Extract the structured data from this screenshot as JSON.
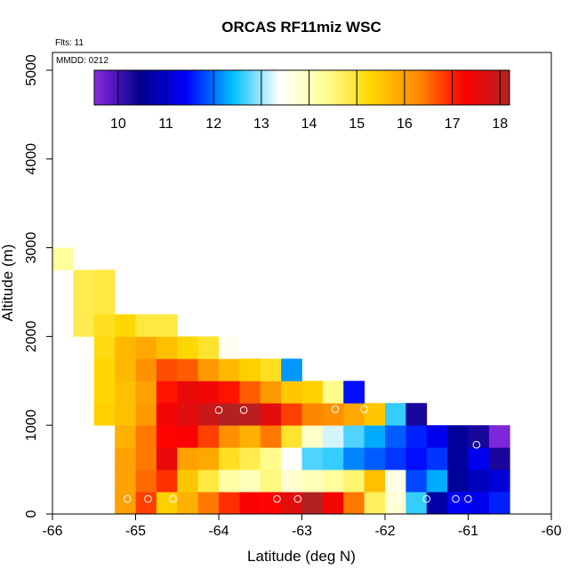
{
  "chart_data": {
    "type": "heatmap",
    "title": "ORCAS RF11miz WSC",
    "flights_label": "Flts: 11",
    "date_label": "MMDD: 0212",
    "xlabel": "Latitude (deg N)",
    "ylabel": "Altitude (m)",
    "xlim": [
      -66,
      -60
    ],
    "ylim": [
      0,
      5200
    ],
    "x_ticks": [
      -66,
      -65,
      -64,
      -63,
      -62,
      -61,
      -60
    ],
    "x_tick_labels": [
      "-66",
      "-65",
      "-64",
      "-63",
      "-62",
      "-61",
      "-60"
    ],
    "y_ticks": [
      0,
      1000,
      2000,
      3000,
      4000,
      5000
    ],
    "y_tick_labels": [
      "0",
      "1000",
      "2000",
      "3000",
      "4000",
      "5000"
    ],
    "cell_width_deg": 0.25,
    "cell_height_m": 250,
    "colorbar": {
      "range": [
        9.5,
        18.2
      ],
      "ticks": [
        10,
        11,
        12,
        13,
        14,
        15,
        16,
        17,
        18
      ],
      "tick_labels": [
        "10",
        "11",
        "12",
        "13",
        "14",
        "15",
        "16",
        "17",
        "18"
      ],
      "stops": [
        "#8a2be2",
        "#00008b",
        "#0000ff",
        "#00bfff",
        "#ffffff",
        "#ffff99",
        "#ffd700",
        "#ff8c00",
        "#ff0000",
        "#b22222"
      ]
    },
    "rows": [
      {
        "alt": 0,
        "lat_start": -65.25,
        "values": [
          16.0,
          16.8,
          15.4,
          15.8,
          16.4,
          16.9,
          17.3,
          17.2,
          17.6,
          18.2,
          17.4,
          16.4,
          14.7,
          13.8,
          12.6,
          10.7,
          11.4,
          11.3,
          11.6
        ]
      },
      {
        "alt": 250,
        "lat_start": -65.25,
        "values": [
          16.0,
          16.5,
          16.9,
          15.5,
          14.9,
          14.2,
          14.0,
          14.5,
          13.8,
          14.0,
          14.3,
          14.6,
          15.6,
          13.6,
          11.8,
          12.3,
          10.6,
          10.9,
          11.1
        ]
      },
      {
        "alt": 500,
        "lat_start": -65.25,
        "values": [
          16.0,
          16.4,
          17.5,
          16.0,
          15.9,
          15.1,
          14.8,
          14.4,
          13.4,
          12.7,
          12.6,
          12.1,
          11.9,
          11.7,
          11.5,
          11.7,
          10.6,
          11.3,
          10.3
        ]
      },
      {
        "alt": 750,
        "lat_start": -65.25,
        "values": [
          15.8,
          16.4,
          17.2,
          17.3,
          16.8,
          16.2,
          15.8,
          16.4,
          15.0,
          13.9,
          13.2,
          12.7,
          12.3,
          11.9,
          11.6,
          11.3,
          10.6,
          10.3,
          9.6
        ]
      },
      {
        "alt": 1000,
        "lat_start": -65.5,
        "values": [
          15.4,
          15.6,
          16.1,
          17.4,
          17.6,
          17.9,
          18.2,
          18.1,
          17.6,
          16.8,
          16.3,
          16.2,
          15.9,
          15.5,
          12.6,
          10.3
        ]
      },
      {
        "alt": 1250,
        "lat_start": -65.5,
        "values": [
          15.3,
          15.6,
          16.0,
          17.1,
          17.5,
          17.4,
          17.1,
          16.6,
          16.1,
          15.5,
          15.4,
          14.4,
          11.5
        ]
      },
      {
        "alt": 1500,
        "lat_start": -65.5,
        "values": [
          15.3,
          15.7,
          16.2,
          16.7,
          16.6,
          16.1,
          15.7,
          15.4,
          15.1,
          12.2
        ]
      },
      {
        "alt": 1750,
        "lat_start": -65.5,
        "values": [
          15.2,
          15.7,
          15.9,
          15.6,
          15.3,
          15.0,
          13.5
        ]
      },
      {
        "alt": 2000,
        "lat_start": -65.75,
        "values": [
          14.8,
          15.1,
          15.3,
          14.9,
          14.9
        ]
      },
      {
        "alt": 2250,
        "lat_start": -65.75,
        "values": [
          14.8,
          14.9
        ]
      },
      {
        "alt": 2500,
        "lat_start": -65.75,
        "values": [
          14.8,
          14.9
        ]
      },
      {
        "alt": 2750,
        "lat_start": -66.0,
        "values": [
          14.3
        ]
      }
    ],
    "markers": [
      {
        "lat": -65.1,
        "alt": 170
      },
      {
        "lat": -64.85,
        "alt": 170
      },
      {
        "lat": -64.55,
        "alt": 170
      },
      {
        "lat": -63.3,
        "alt": 170
      },
      {
        "lat": -63.05,
        "alt": 170
      },
      {
        "lat": -61.85,
        "alt": 170
      },
      {
        "lat": -61.5,
        "alt": 170
      },
      {
        "lat": -61.15,
        "alt": 170
      },
      {
        "lat": -61.0,
        "alt": 170
      },
      {
        "lat": -64.0,
        "alt": 1170
      },
      {
        "lat": -63.7,
        "alt": 1170
      },
      {
        "lat": -62.6,
        "alt": 1180
      },
      {
        "lat": -62.25,
        "alt": 1180
      },
      {
        "lat": -60.9,
        "alt": 780
      }
    ]
  }
}
